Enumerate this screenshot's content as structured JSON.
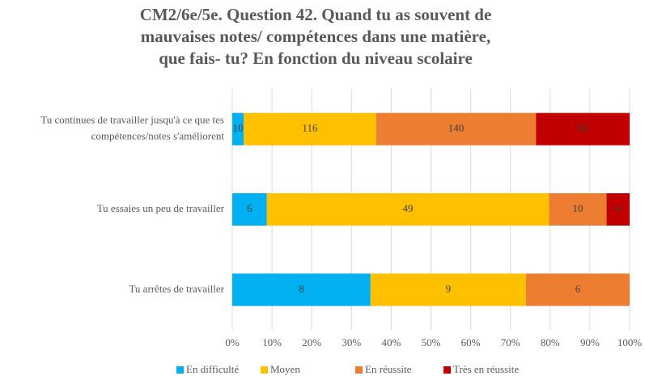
{
  "chart_data": {
    "type": "bar",
    "orientation": "horizontal",
    "stacking": "percent",
    "title": [
      "CM2/6e/5e. Question 42. Quand tu as souvent de",
      "mauvaises notes/ compétences dans une matière,",
      "que fais- tu? En fonction du niveau scolaire"
    ],
    "categories": [
      [
        "Tu continues de travailler jusqu'à ce que tes",
        "compétences/notes s'améliorent"
      ],
      [
        "Tu essaies un peu de travailler"
      ],
      [
        "Tu arrêtes de travailler"
      ]
    ],
    "series": [
      {
        "name": "En difficulté",
        "color": "#00b0f0",
        "values": [
          10,
          6,
          8
        ]
      },
      {
        "name": "Moyen",
        "color": "#ffc000",
        "values": [
          116,
          49,
          9
        ]
      },
      {
        "name": "En réussite",
        "color": "#ed7d31",
        "values": [
          140,
          10,
          6
        ]
      },
      {
        "name": "Très en réussite",
        "color": "#c00000",
        "values": [
          82,
          4,
          null
        ]
      }
    ],
    "xlim": [
      0,
      100
    ],
    "xticks": [
      {
        "value": 0,
        "label": "0%"
      },
      {
        "value": 10,
        "label": "10%"
      },
      {
        "value": 20,
        "label": "20%"
      },
      {
        "value": 30,
        "label": "30%"
      },
      {
        "value": 40,
        "label": "40%"
      },
      {
        "value": 50,
        "label": "50%"
      },
      {
        "value": 60,
        "label": "60%"
      },
      {
        "value": 70,
        "label": "70%"
      },
      {
        "value": 80,
        "label": "80%"
      },
      {
        "value": 90,
        "label": "90%"
      },
      {
        "value": 100,
        "label": "100%"
      }
    ],
    "grid": true,
    "legend": "bottom"
  }
}
